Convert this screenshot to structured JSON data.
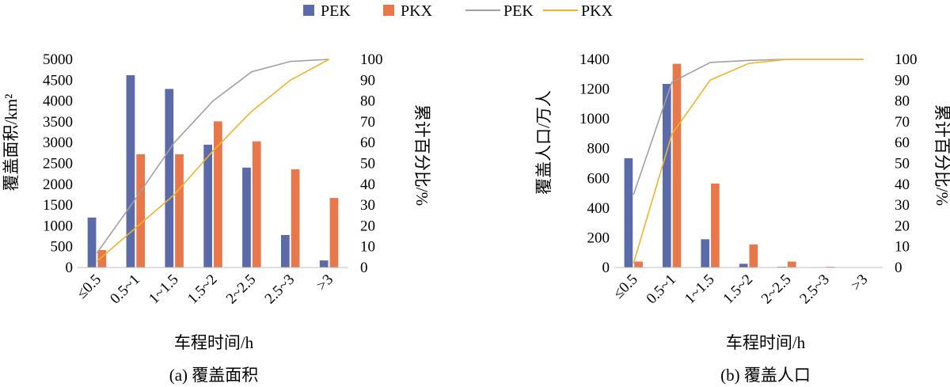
{
  "legend": {
    "items": [
      {
        "label": "PEK",
        "kind": "bar",
        "color": "#5b6aa8"
      },
      {
        "label": "PKX",
        "kind": "bar",
        "color": "#e8774a"
      },
      {
        "label": "PEK",
        "kind": "line",
        "color": "#a0a0a0"
      },
      {
        "label": "PKX",
        "kind": "line",
        "color": "#f0b429"
      }
    ]
  },
  "chart_data": [
    {
      "type": "bar",
      "caption": "(a) 覆盖面积",
      "xlabel": "车程时间/h",
      "ylabel": "覆盖面积/km²",
      "y2label": "累计百分比/%",
      "categories": [
        "≤0.5",
        "0.5~1",
        "1~1.5",
        "1.5~2",
        "2~2.5",
        "2.5~3",
        ">3"
      ],
      "ylim": [
        0,
        5000
      ],
      "yticks": [
        0,
        500,
        1000,
        1500,
        2000,
        2500,
        3000,
        3500,
        4000,
        4500,
        5000
      ],
      "y2lim": [
        0,
        100
      ],
      "y2ticks": [
        0,
        10,
        20,
        30,
        40,
        50,
        60,
        70,
        80,
        90,
        100
      ],
      "series": [
        {
          "name": "PEK",
          "kind": "bar",
          "axis": "left",
          "color": "#5b6aa8",
          "values": [
            1200,
            4620,
            4290,
            2950,
            2400,
            780,
            170
          ]
        },
        {
          "name": "PKX",
          "kind": "bar",
          "axis": "left",
          "color": "#e8774a",
          "values": [
            420,
            2720,
            2720,
            3510,
            3030,
            2360,
            1670
          ]
        },
        {
          "name": "PEK",
          "kind": "line",
          "axis": "right",
          "color": "#a0a0a0",
          "values": [
            7,
            33,
            60,
            80,
            94,
            99,
            100
          ]
        },
        {
          "name": "PKX",
          "kind": "line",
          "axis": "right",
          "color": "#f0b429",
          "values": [
            3,
            19,
            35,
            56,
            75,
            90,
            100
          ]
        }
      ]
    },
    {
      "type": "bar",
      "caption": "(b) 覆盖人口",
      "xlabel": "车程时间/h",
      "ylabel": "覆盖人口/万人",
      "y2label": "累计百分比/%",
      "categories": [
        "≤0.5",
        "0.5~1",
        "1~1.5",
        "1.5~2",
        "2~2.5",
        "2.5~3",
        ">3"
      ],
      "ylim": [
        0,
        1400
      ],
      "yticks": [
        0,
        200,
        400,
        600,
        800,
        1000,
        1200,
        1400
      ],
      "y2lim": [
        0,
        100
      ],
      "y2ticks": [
        0,
        10,
        20,
        30,
        40,
        50,
        60,
        70,
        80,
        90,
        100
      ],
      "series": [
        {
          "name": "PEK",
          "kind": "bar",
          "axis": "left",
          "color": "#5b6aa8",
          "values": [
            735,
            1235,
            190,
            25,
            5,
            3,
            2
          ]
        },
        {
          "name": "PKX",
          "kind": "bar",
          "axis": "left",
          "color": "#e8774a",
          "values": [
            40,
            1370,
            565,
            155,
            40,
            5,
            2
          ]
        },
        {
          "name": "PEK",
          "kind": "line",
          "axis": "right",
          "color": "#a0a0a0",
          "values": [
            35,
            89,
            98.5,
            99.5,
            100,
            100,
            100
          ]
        },
        {
          "name": "PKX",
          "kind": "line",
          "axis": "right",
          "color": "#f0b429",
          "values": [
            2,
            64,
            90,
            98,
            100,
            100,
            100
          ]
        }
      ]
    }
  ]
}
